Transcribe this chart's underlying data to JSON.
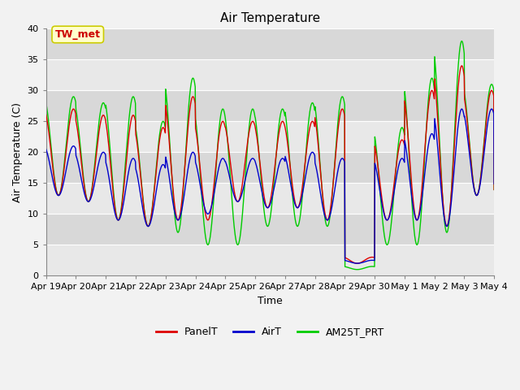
{
  "title": "Air Temperature",
  "xlabel": "Time",
  "ylabel": "Air Temperature (C)",
  "ylim": [
    0,
    40
  ],
  "yticks": [
    0,
    5,
    10,
    15,
    20,
    25,
    30,
    35,
    40
  ],
  "x_labels": [
    "Apr 19",
    "Apr 20",
    "Apr 21",
    "Apr 22",
    "Apr 23",
    "Apr 24",
    "Apr 25",
    "Apr 26",
    "Apr 27",
    "Apr 28",
    "Apr 29",
    "Apr 30",
    "May 1",
    "May 2",
    "May 3",
    "May 4"
  ],
  "annotation_text": "TW_met",
  "annotation_bg": "#ffffcc",
  "annotation_edge": "#cccc00",
  "annotation_text_color": "#cc0000",
  "colors": {
    "PanelT": "#dd0000",
    "AirT": "#0000cc",
    "AM25T_PRT": "#00cc00"
  },
  "line_width": 1.0,
  "background_color": "#e8e8e8",
  "band_color_dark": "#d8d8d8",
  "band_color_light": "#e8e8e8",
  "figure_bg": "#f2f2f2",
  "title_fontsize": 11,
  "label_fontsize": 9,
  "tick_fontsize": 8,
  "legend_fontsize": 9,
  "panel_maxes": [
    27,
    26,
    26,
    24,
    29,
    25,
    25,
    25,
    25,
    27,
    3,
    22,
    30,
    34,
    30,
    14
  ],
  "panel_mins": [
    13,
    12,
    9,
    8,
    9,
    9,
    12,
    11,
    11,
    9,
    2,
    9,
    9,
    8,
    13,
    13
  ],
  "air_maxes": [
    21,
    20,
    19,
    18,
    20,
    19,
    19,
    19,
    20,
    19,
    2.5,
    19,
    23,
    27,
    27,
    15
  ],
  "air_mins": [
    13,
    12,
    9,
    8,
    9,
    10,
    12,
    11,
    11,
    9,
    2,
    9,
    9,
    8,
    13,
    13
  ],
  "am25_maxes": [
    29,
    28,
    29,
    25,
    32,
    27,
    27,
    27,
    28,
    29,
    1.5,
    24,
    32,
    38,
    31,
    14
  ],
  "am25_mins": [
    13,
    12,
    9,
    8,
    7,
    5,
    5,
    8,
    8,
    8,
    1,
    5,
    5,
    7,
    13,
    13
  ]
}
